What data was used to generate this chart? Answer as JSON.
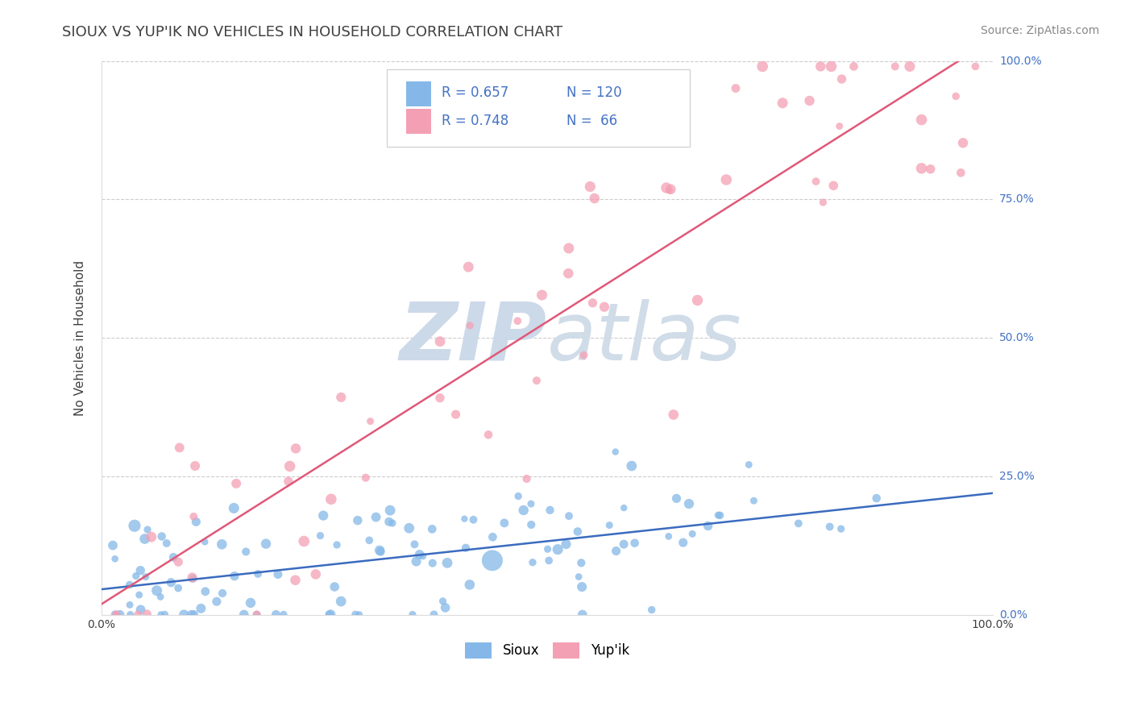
{
  "title": "SIOUX VS YUP'IK NO VEHICLES IN HOUSEHOLD CORRELATION CHART",
  "source_text": "Source: ZipAtlas.com",
  "ylabel": "No Vehicles in Household",
  "xlim": [
    0.0,
    1.0
  ],
  "ylim": [
    0.0,
    1.0
  ],
  "y_tick_positions": [
    0.0,
    0.25,
    0.5,
    0.75,
    1.0
  ],
  "y_tick_labels_right": [
    "0.0%",
    "25.0%",
    "50.0%",
    "75.0%",
    "100.0%"
  ],
  "background_color": "#ffffff",
  "watermark_color": "#ccd9e8",
  "sioux_color": "#85B8E8",
  "yupik_color": "#F4A0B4",
  "sioux_line_color": "#3A6BBF",
  "yupik_line_color": "#E05878",
  "legend_color": "#4472C4",
  "sioux_R": 0.657,
  "sioux_N": 120,
  "yupik_R": 0.748,
  "yupik_N": 66,
  "sioux_seed": 42,
  "yupik_seed": 99
}
